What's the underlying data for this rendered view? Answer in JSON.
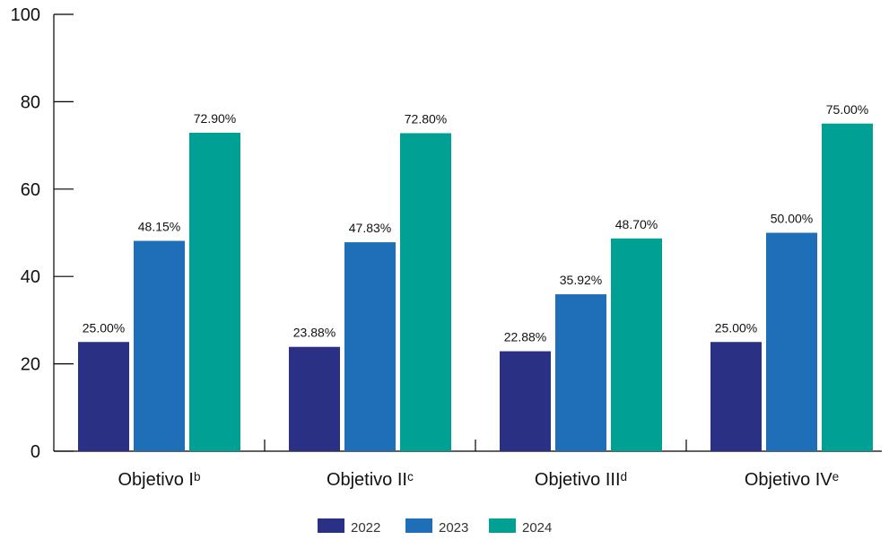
{
  "chart_data": {
    "type": "bar",
    "categories": [
      "Objetivo Iᵇ",
      "Objetivo IIᶜ",
      "Objetivo IIIᵈ",
      "Objetivo IVᵉ"
    ],
    "series": [
      {
        "name": "2022",
        "color": "#2a3185",
        "values": [
          25.0,
          23.88,
          22.88,
          25.0
        ],
        "labels": [
          "25.00%",
          "23.88%",
          "22.88%",
          "25.00%"
        ]
      },
      {
        "name": "2023",
        "color": "#1e6fb8",
        "values": [
          48.15,
          47.83,
          35.92,
          50.0
        ],
        "labels": [
          "48.15%",
          "47.83%",
          "35.92%",
          "50.00%"
        ]
      },
      {
        "name": "2024",
        "color": "#00a095",
        "values": [
          72.9,
          72.8,
          48.7,
          75.0
        ],
        "labels": [
          "72.90%",
          "72.80%",
          "48.70%",
          "75.00%"
        ]
      }
    ],
    "y_ticks": [
      "0",
      "20",
      "40",
      "60",
      "80",
      "100"
    ],
    "ylim": [
      0,
      100
    ],
    "grid": false,
    "legend_position": "bottom-center"
  }
}
